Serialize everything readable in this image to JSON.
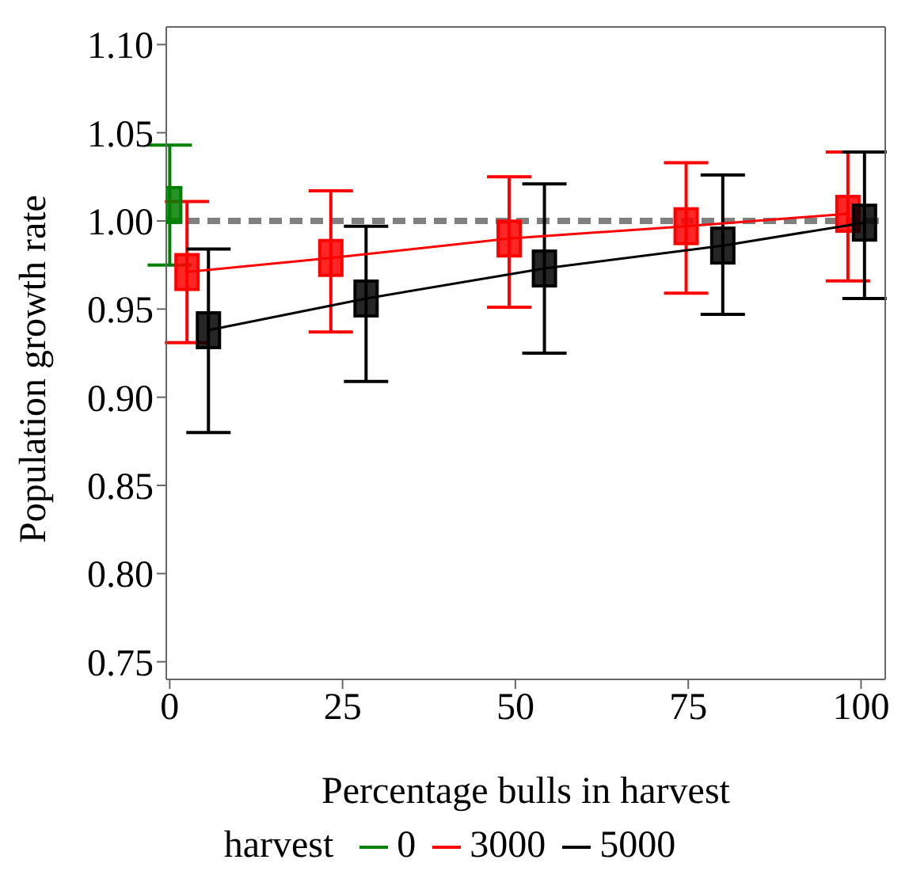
{
  "chart_data": {
    "type": "line",
    "xlabel": "Percentage bulls in harvest",
    "ylabel": "Population growth rate",
    "legend_title": "harvest",
    "legend": "bottom",
    "marker": "square",
    "line_style": "solid",
    "xlim": [
      -0.5,
      103.5
    ],
    "xticks": [
      0,
      25,
      50,
      75,
      100
    ],
    "ylim": [
      0.74,
      1.11
    ],
    "yticks": [
      {
        "value": 0.75,
        "label": "0.75"
      },
      {
        "value": 0.8,
        "label": "0.80"
      },
      {
        "value": 0.85,
        "label": "0.85"
      },
      {
        "value": 0.9,
        "label": "0.90"
      },
      {
        "value": 0.95,
        "label": "0.95"
      },
      {
        "value": 1.0,
        "label": "1.00"
      },
      {
        "value": 1.05,
        "label": "1.05"
      },
      {
        "value": 1.1,
        "label": "1.10"
      }
    ],
    "ref_lines": [
      {
        "axis": "y",
        "value": 1.0,
        "label": null,
        "color": "#808080",
        "line_style": "dashed"
      }
    ],
    "series": [
      {
        "name": "0",
        "color": "#008000",
        "x": [
          0
        ],
        "values": [
          1.009
        ],
        "errors": [
          [
            0.975,
            1.043
          ]
        ]
      },
      {
        "name": "3000",
        "color": "#ff0000",
        "x": [
          2.5,
          23.3,
          49.1,
          74.7,
          98.1
        ],
        "values": [
          0.971,
          0.979,
          0.99,
          0.997,
          1.004
        ],
        "errors": [
          [
            0.931,
            1.011
          ],
          [
            0.937,
            1.017
          ],
          [
            0.951,
            1.025
          ],
          [
            0.959,
            1.033
          ],
          [
            0.966,
            1.039
          ]
        ]
      },
      {
        "name": "5000",
        "color": "#000000",
        "x": [
          5.6,
          28.4,
          54.2,
          80,
          100.5
        ],
        "values": [
          0.938,
          0.956,
          0.973,
          0.986,
          0.999
        ],
        "errors": [
          [
            0.88,
            0.984
          ],
          [
            0.909,
            0.997
          ],
          [
            0.925,
            1.021
          ],
          [
            0.947,
            1.026
          ],
          [
            0.956,
            1.039
          ]
        ]
      }
    ]
  }
}
